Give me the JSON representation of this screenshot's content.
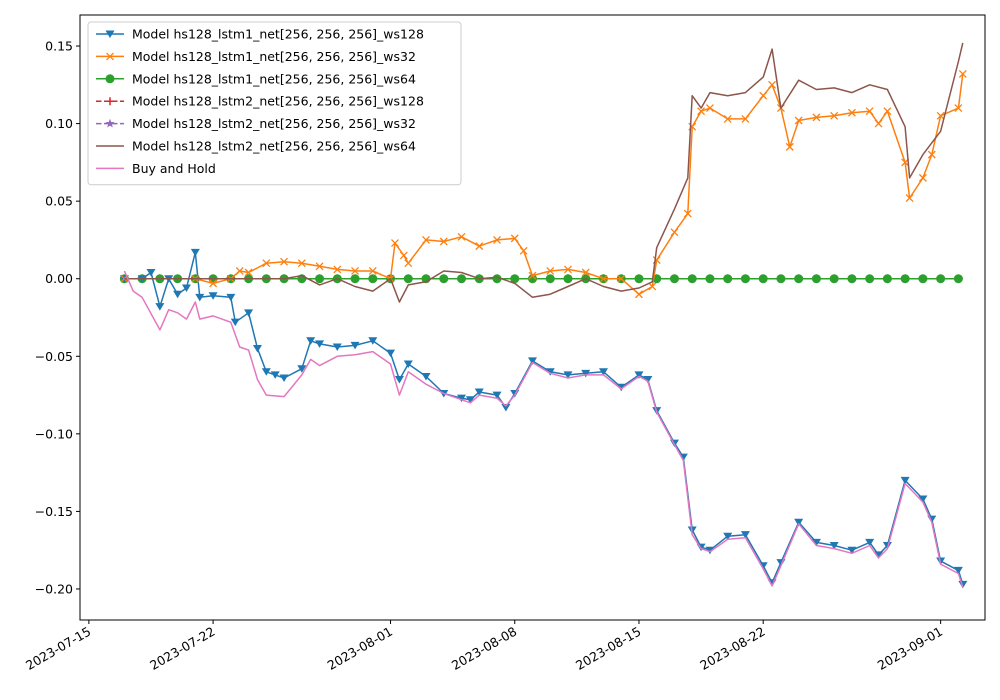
{
  "chart_data": {
    "type": "line",
    "title": "",
    "xlabel": "",
    "ylabel": "",
    "x_range": [
      "2023-07-14T12:00",
      "2023-09-03T12:00"
    ],
    "ylim": [
      -0.22,
      0.17
    ],
    "x_ticks": [
      "2023-07-15",
      "2023-07-22",
      "2023-08-01",
      "2023-08-08",
      "2023-08-15",
      "2023-08-22",
      "2023-09-01"
    ],
    "y_ticks": [
      -0.2,
      -0.15,
      -0.1,
      -0.05,
      0.0,
      0.05,
      0.1,
      0.15
    ],
    "y_tick_labels": [
      "−0.20",
      "−0.15",
      "−0.10",
      "−0.05",
      "0.00",
      "0.05",
      "0.10",
      "0.15"
    ],
    "legend_position": "upper-left",
    "grid": false,
    "series": [
      {
        "name": "Model hs128_lstm1_net[256, 256, 256]_ws128",
        "color": "#1f77b4",
        "marker": "triangle-down",
        "dash": "solid",
        "points": [
          [
            "2023-07-17",
            0.0
          ],
          [
            "2023-07-18",
            0.0
          ],
          [
            "2023-07-18T12:00",
            0.004
          ],
          [
            "2023-07-19",
            -0.018
          ],
          [
            "2023-07-19T12:00",
            0.0
          ],
          [
            "2023-07-20",
            -0.01
          ],
          [
            "2023-07-20T12:00",
            -0.006
          ],
          [
            "2023-07-21",
            0.017
          ],
          [
            "2023-07-21T06:00",
            -0.012
          ],
          [
            "2023-07-22",
            -0.011
          ],
          [
            "2023-07-23",
            -0.012
          ],
          [
            "2023-07-23T06:00",
            -0.028
          ],
          [
            "2023-07-24",
            -0.022
          ],
          [
            "2023-07-24T12:00",
            -0.045
          ],
          [
            "2023-07-25",
            -0.06
          ],
          [
            "2023-07-25T12:00",
            -0.062
          ],
          [
            "2023-07-26",
            -0.064
          ],
          [
            "2023-07-27",
            -0.058
          ],
          [
            "2023-07-27T12:00",
            -0.04
          ],
          [
            "2023-07-28",
            -0.042
          ],
          [
            "2023-07-29",
            -0.044
          ],
          [
            "2023-07-30",
            -0.043
          ],
          [
            "2023-07-31",
            -0.04
          ],
          [
            "2023-08-01",
            -0.048
          ],
          [
            "2023-08-01T12:00",
            -0.065
          ],
          [
            "2023-08-02",
            -0.055
          ],
          [
            "2023-08-03",
            -0.063
          ],
          [
            "2023-08-04",
            -0.074
          ],
          [
            "2023-08-05",
            -0.077
          ],
          [
            "2023-08-05T12:00",
            -0.078
          ],
          [
            "2023-08-06",
            -0.073
          ],
          [
            "2023-08-07",
            -0.075
          ],
          [
            "2023-08-07T12:00",
            -0.083
          ],
          [
            "2023-08-08",
            -0.074
          ],
          [
            "2023-08-09",
            -0.053
          ],
          [
            "2023-08-10",
            -0.06
          ],
          [
            "2023-08-11",
            -0.062
          ],
          [
            "2023-08-12",
            -0.061
          ],
          [
            "2023-08-13",
            -0.06
          ],
          [
            "2023-08-14",
            -0.07
          ],
          [
            "2023-08-15",
            -0.062
          ],
          [
            "2023-08-15T12:00",
            -0.065
          ],
          [
            "2023-08-16",
            -0.085
          ],
          [
            "2023-08-17",
            -0.106
          ],
          [
            "2023-08-17T12:00",
            -0.115
          ],
          [
            "2023-08-18",
            -0.162
          ],
          [
            "2023-08-18T12:00",
            -0.173
          ],
          [
            "2023-08-19",
            -0.175
          ],
          [
            "2023-08-20",
            -0.166
          ],
          [
            "2023-08-21",
            -0.165
          ],
          [
            "2023-08-22",
            -0.185
          ],
          [
            "2023-08-22T12:00",
            -0.196
          ],
          [
            "2023-08-23",
            -0.183
          ],
          [
            "2023-08-24",
            -0.157
          ],
          [
            "2023-08-25",
            -0.17
          ],
          [
            "2023-08-26",
            -0.172
          ],
          [
            "2023-08-27",
            -0.175
          ],
          [
            "2023-08-28",
            -0.17
          ],
          [
            "2023-08-28T12:00",
            -0.178
          ],
          [
            "2023-08-29",
            -0.172
          ],
          [
            "2023-08-30",
            -0.13
          ],
          [
            "2023-08-31",
            -0.142
          ],
          [
            "2023-08-31T12:00",
            -0.155
          ],
          [
            "2023-09-01",
            -0.182
          ],
          [
            "2023-09-02",
            -0.188
          ],
          [
            "2023-09-02T06:00",
            -0.197
          ]
        ]
      },
      {
        "name": "Model hs128_lstm1_net[256, 256, 256]_ws32",
        "color": "#ff7f0e",
        "marker": "x",
        "dash": "solid",
        "points": [
          [
            "2023-07-17",
            0.0
          ],
          [
            "2023-07-21",
            0.0
          ],
          [
            "2023-07-22",
            -0.003
          ],
          [
            "2023-07-23",
            0.0
          ],
          [
            "2023-07-23T12:00",
            0.005
          ],
          [
            "2023-07-24",
            0.004
          ],
          [
            "2023-07-25",
            0.01
          ],
          [
            "2023-07-26",
            0.011
          ],
          [
            "2023-07-27",
            0.01
          ],
          [
            "2023-07-28",
            0.008
          ],
          [
            "2023-07-29",
            0.006
          ],
          [
            "2023-07-30",
            0.005
          ],
          [
            "2023-07-31",
            0.005
          ],
          [
            "2023-08-01",
            0.0
          ],
          [
            "2023-08-01T06:00",
            0.023
          ],
          [
            "2023-08-01T18:00",
            0.015
          ],
          [
            "2023-08-02",
            0.01
          ],
          [
            "2023-08-03",
            0.025
          ],
          [
            "2023-08-04",
            0.024
          ],
          [
            "2023-08-05",
            0.027
          ],
          [
            "2023-08-06",
            0.021
          ],
          [
            "2023-08-07",
            0.025
          ],
          [
            "2023-08-08",
            0.026
          ],
          [
            "2023-08-08T12:00",
            0.018
          ],
          [
            "2023-08-09",
            0.002
          ],
          [
            "2023-08-10",
            0.005
          ],
          [
            "2023-08-11",
            0.006
          ],
          [
            "2023-08-12",
            0.004
          ],
          [
            "2023-08-13",
            0.0
          ],
          [
            "2023-08-14",
            0.0
          ],
          [
            "2023-08-15",
            -0.01
          ],
          [
            "2023-08-15T18:00",
            -0.005
          ],
          [
            "2023-08-16",
            0.012
          ],
          [
            "2023-08-17",
            0.03
          ],
          [
            "2023-08-17T18:00",
            0.042
          ],
          [
            "2023-08-18",
            0.098
          ],
          [
            "2023-08-18T12:00",
            0.108
          ],
          [
            "2023-08-19",
            0.11
          ],
          [
            "2023-08-20",
            0.103
          ],
          [
            "2023-08-21",
            0.103
          ],
          [
            "2023-08-22",
            0.118
          ],
          [
            "2023-08-22T12:00",
            0.125
          ],
          [
            "2023-08-23",
            0.11
          ],
          [
            "2023-08-23T12:00",
            0.085
          ],
          [
            "2023-08-24",
            0.102
          ],
          [
            "2023-08-25",
            0.104
          ],
          [
            "2023-08-26",
            0.105
          ],
          [
            "2023-08-27",
            0.107
          ],
          [
            "2023-08-28",
            0.108
          ],
          [
            "2023-08-28T12:00",
            0.1
          ],
          [
            "2023-08-29",
            0.108
          ],
          [
            "2023-08-30",
            0.075
          ],
          [
            "2023-08-30T06:00",
            0.052
          ],
          [
            "2023-08-31",
            0.065
          ],
          [
            "2023-08-31T12:00",
            0.08
          ],
          [
            "2023-09-01",
            0.105
          ],
          [
            "2023-09-02",
            0.11
          ],
          [
            "2023-09-02T06:00",
            0.132
          ]
        ]
      },
      {
        "name": "Model hs128_lstm1_net[256, 256, 256]_ws64",
        "color": "#2ca02c",
        "marker": "circle",
        "dash": "solid",
        "points": [
          [
            "2023-07-17",
            0.0
          ],
          [
            "2023-09-02T06:00",
            0.0
          ]
        ]
      },
      {
        "name": "Model hs128_lstm2_net[256, 256, 256]_ws128",
        "color": "#d62728",
        "marker": "plus",
        "dash": "dashed",
        "points": [
          [
            "2023-07-17",
            0.0
          ],
          [
            "2023-09-02T06:00",
            0.0
          ]
        ]
      },
      {
        "name": "Model hs128_lstm2_net[256, 256, 256]_ws32",
        "color": "#9467bd",
        "marker": "star",
        "dash": "dashed",
        "points": [
          [
            "2023-07-17",
            0.0
          ],
          [
            "2023-09-02T06:00",
            0.0
          ]
        ]
      },
      {
        "name": "Model hs128_lstm2_net[256, 256, 256]_ws64",
        "color": "#8c564b",
        "marker": "none",
        "dash": "solid",
        "points": [
          [
            "2023-07-17",
            0.0
          ],
          [
            "2023-07-26",
            0.0
          ],
          [
            "2023-07-27",
            0.002
          ],
          [
            "2023-07-28",
            -0.004
          ],
          [
            "2023-07-29",
            0.0
          ],
          [
            "2023-07-30",
            -0.005
          ],
          [
            "2023-07-31",
            -0.008
          ],
          [
            "2023-08-01",
            0.0
          ],
          [
            "2023-08-01T12:00",
            -0.015
          ],
          [
            "2023-08-02",
            -0.004
          ],
          [
            "2023-08-03",
            -0.002
          ],
          [
            "2023-08-04",
            0.005
          ],
          [
            "2023-08-05",
            0.004
          ],
          [
            "2023-08-06",
            0.0
          ],
          [
            "2023-08-07",
            0.001
          ],
          [
            "2023-08-08",
            -0.003
          ],
          [
            "2023-08-09",
            -0.012
          ],
          [
            "2023-08-10",
            -0.01
          ],
          [
            "2023-08-11",
            -0.005
          ],
          [
            "2023-08-12",
            0.0
          ],
          [
            "2023-08-13",
            -0.005
          ],
          [
            "2023-08-14",
            -0.008
          ],
          [
            "2023-08-15",
            -0.006
          ],
          [
            "2023-08-15T18:00",
            -0.002
          ],
          [
            "2023-08-16",
            0.02
          ],
          [
            "2023-08-17",
            0.045
          ],
          [
            "2023-08-17T18:00",
            0.065
          ],
          [
            "2023-08-18",
            0.118
          ],
          [
            "2023-08-18T12:00",
            0.11
          ],
          [
            "2023-08-19",
            0.12
          ],
          [
            "2023-08-20",
            0.118
          ],
          [
            "2023-08-21",
            0.12
          ],
          [
            "2023-08-22",
            0.13
          ],
          [
            "2023-08-22T12:00",
            0.148
          ],
          [
            "2023-08-23",
            0.11
          ],
          [
            "2023-08-24",
            0.128
          ],
          [
            "2023-08-25",
            0.122
          ],
          [
            "2023-08-26",
            0.123
          ],
          [
            "2023-08-27",
            0.12
          ],
          [
            "2023-08-28",
            0.125
          ],
          [
            "2023-08-29",
            0.122
          ],
          [
            "2023-08-30",
            0.098
          ],
          [
            "2023-08-30T06:00",
            0.065
          ],
          [
            "2023-08-31",
            0.08
          ],
          [
            "2023-09-01",
            0.095
          ],
          [
            "2023-09-02",
            0.14
          ],
          [
            "2023-09-02T06:00",
            0.152
          ]
        ]
      },
      {
        "name": "Buy and Hold",
        "color": "#e377c2",
        "marker": "none",
        "dash": "solid",
        "points": [
          [
            "2023-07-17",
            0.005
          ],
          [
            "2023-07-17T12:00",
            -0.008
          ],
          [
            "2023-07-18",
            -0.012
          ],
          [
            "2023-07-19",
            -0.033
          ],
          [
            "2023-07-19T12:00",
            -0.02
          ],
          [
            "2023-07-20",
            -0.022
          ],
          [
            "2023-07-20T12:00",
            -0.026
          ],
          [
            "2023-07-21",
            -0.015
          ],
          [
            "2023-07-21T06:00",
            -0.026
          ],
          [
            "2023-07-22",
            -0.024
          ],
          [
            "2023-07-23",
            -0.028
          ],
          [
            "2023-07-23T12:00",
            -0.044
          ],
          [
            "2023-07-24",
            -0.046
          ],
          [
            "2023-07-24T12:00",
            -0.065
          ],
          [
            "2023-07-25",
            -0.075
          ],
          [
            "2023-07-26",
            -0.076
          ],
          [
            "2023-07-27",
            -0.062
          ],
          [
            "2023-07-27T12:00",
            -0.052
          ],
          [
            "2023-07-28",
            -0.056
          ],
          [
            "2023-07-29",
            -0.05
          ],
          [
            "2023-07-30",
            -0.049
          ],
          [
            "2023-07-31",
            -0.047
          ],
          [
            "2023-08-01",
            -0.055
          ],
          [
            "2023-08-01T12:00",
            -0.075
          ],
          [
            "2023-08-02",
            -0.06
          ],
          [
            "2023-08-03",
            -0.068
          ],
          [
            "2023-08-04",
            -0.074
          ],
          [
            "2023-08-05",
            -0.078
          ],
          [
            "2023-08-05T12:00",
            -0.08
          ],
          [
            "2023-08-06",
            -0.075
          ],
          [
            "2023-08-07",
            -0.077
          ],
          [
            "2023-08-07T12:00",
            -0.082
          ],
          [
            "2023-08-08",
            -0.075
          ],
          [
            "2023-08-09",
            -0.054
          ],
          [
            "2023-08-10",
            -0.061
          ],
          [
            "2023-08-11",
            -0.064
          ],
          [
            "2023-08-12",
            -0.062
          ],
          [
            "2023-08-13",
            -0.062
          ],
          [
            "2023-08-14",
            -0.071
          ],
          [
            "2023-08-15",
            -0.063
          ],
          [
            "2023-08-15T12:00",
            -0.066
          ],
          [
            "2023-08-16",
            -0.086
          ],
          [
            "2023-08-17",
            -0.107
          ],
          [
            "2023-08-17T12:00",
            -0.117
          ],
          [
            "2023-08-18",
            -0.165
          ],
          [
            "2023-08-18T12:00",
            -0.174
          ],
          [
            "2023-08-19",
            -0.176
          ],
          [
            "2023-08-20",
            -0.168
          ],
          [
            "2023-08-21",
            -0.167
          ],
          [
            "2023-08-22",
            -0.187
          ],
          [
            "2023-08-22T12:00",
            -0.198
          ],
          [
            "2023-08-23",
            -0.185
          ],
          [
            "2023-08-24",
            -0.158
          ],
          [
            "2023-08-25",
            -0.172
          ],
          [
            "2023-08-26",
            -0.174
          ],
          [
            "2023-08-27",
            -0.177
          ],
          [
            "2023-08-28",
            -0.172
          ],
          [
            "2023-08-28T12:00",
            -0.18
          ],
          [
            "2023-08-29",
            -0.174
          ],
          [
            "2023-08-30",
            -0.132
          ],
          [
            "2023-08-31",
            -0.144
          ],
          [
            "2023-08-31T12:00",
            -0.157
          ],
          [
            "2023-09-01",
            -0.184
          ],
          [
            "2023-09-02",
            -0.19
          ],
          [
            "2023-09-02T06:00",
            -0.199
          ]
        ]
      }
    ]
  }
}
